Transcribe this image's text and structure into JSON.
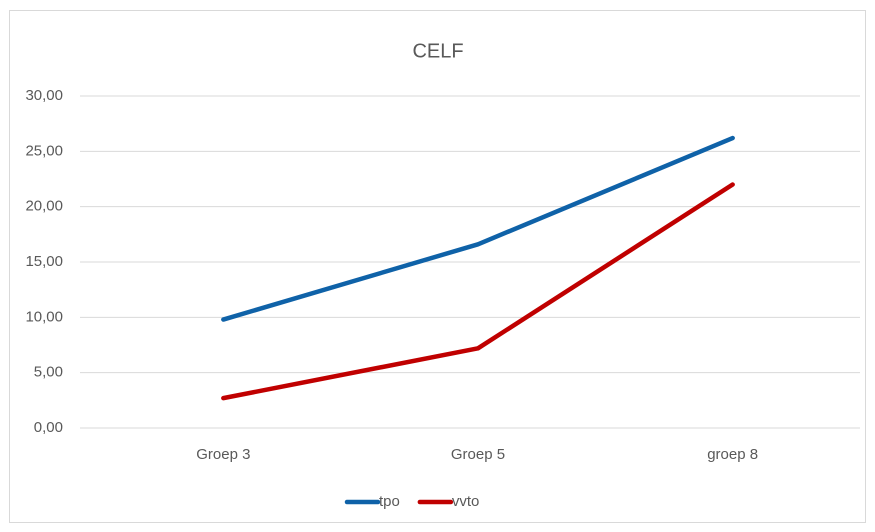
{
  "chart_data": {
    "type": "line",
    "title": "CELF",
    "categories": [
      "Groep 3",
      "Groep 5",
      "groep 8"
    ],
    "series": [
      {
        "name": "tpo",
        "color": "#0f62a8",
        "values": [
          9.8,
          16.6,
          26.2
        ]
      },
      {
        "name": "vvto",
        "color": "#c00000",
        "values": [
          2.7,
          7.2,
          22.0
        ]
      }
    ],
    "ylim": [
      0,
      30
    ],
    "yticks": [
      {
        "value": 0,
        "label": "0,00"
      },
      {
        "value": 5,
        "label": "5,00"
      },
      {
        "value": 10,
        "label": "10,00"
      },
      {
        "value": 15,
        "label": "15,00"
      },
      {
        "value": 20,
        "label": "20,00"
      },
      {
        "value": 25,
        "label": "25,00"
      },
      {
        "value": 30,
        "label": "30,00"
      }
    ],
    "grid": true,
    "legend": "bottom"
  }
}
